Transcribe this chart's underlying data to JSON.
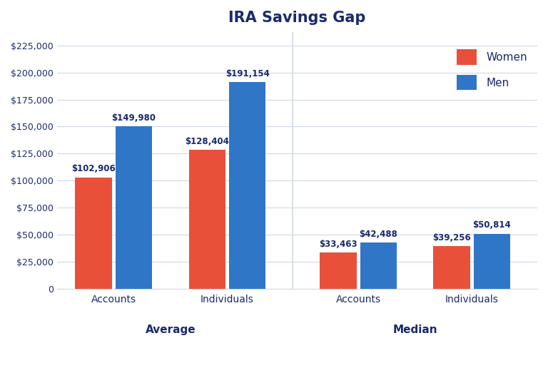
{
  "title": "IRA Savings Gap",
  "title_fontsize": 15,
  "title_fontweight": "bold",
  "background_color": "#ffffff",
  "bar_color_women": "#E8503A",
  "bar_color_men": "#2F76C7",
  "label_color": "#1a2a6c",
  "women_values": [
    102906,
    128404,
    33463,
    39256
  ],
  "men_values": [
    149980,
    191154,
    42488,
    50814
  ],
  "women_labels": [
    "$102,906",
    "$128,404",
    "$33,463",
    "$39,256"
  ],
  "men_labels": [
    "$149,980",
    "$191,154",
    "$42,488",
    "$50,814"
  ],
  "ylim": [
    0,
    237500
  ],
  "yticks": [
    0,
    25000,
    50000,
    75000,
    100000,
    125000,
    150000,
    175000,
    200000,
    225000
  ],
  "ytick_labels": [
    "0",
    "$25,000",
    "$50,000",
    "$75,000",
    "$100,000",
    "$125,000",
    "$150,000",
    "$175,000",
    "$200,000",
    "$225,000"
  ],
  "xlabel_groups": [
    "Average",
    "Median"
  ],
  "xlabel_subgroups": [
    "Accounts",
    "Individuals",
    "Accounts",
    "Individuals"
  ],
  "legend_women": "Women",
  "legend_men": "Men",
  "grid_color": "#d0d8e8",
  "tick_label_color": "#1a2a6c",
  "group_label_color": "#1a2a6c",
  "pair_centers": [
    1.0,
    2.3,
    3.8,
    5.1
  ],
  "bar_width": 0.42,
  "bar_gap": 0.04,
  "xlim": [
    0.35,
    5.85
  ]
}
